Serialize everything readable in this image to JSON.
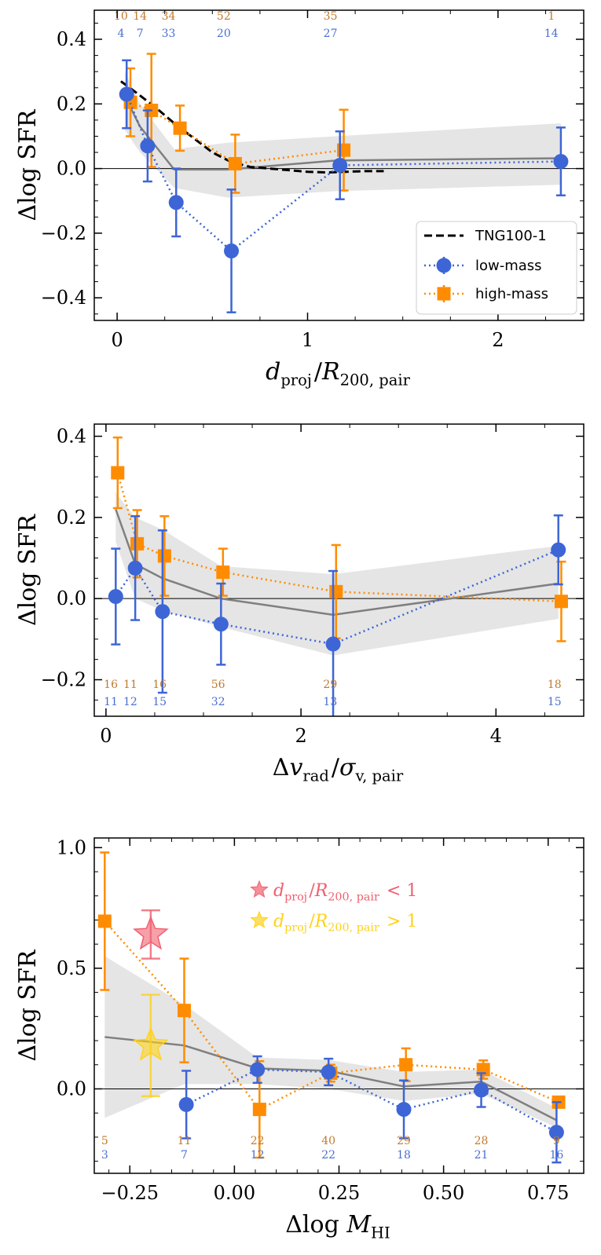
{
  "colors": {
    "low": "#3d65d6",
    "high": "#ff8c00",
    "count_low": "#4a6fd0",
    "count_high": "#c07a30",
    "total": "#7f7f7f",
    "band": "#e5e5e5",
    "tng": "#000000",
    "star_in": "#f06070",
    "star_out": "#ffd21a"
  },
  "chart_data": [
    {
      "type": "line",
      "panel": "top",
      "ylabel": "Δlog SFR",
      "xlabel": "dproj/R200,pair",
      "xlim": [
        -0.12,
        2.45
      ],
      "ylim": [
        -0.47,
        0.49
      ],
      "xticks": [
        0,
        1,
        2
      ],
      "yticks": [
        -0.4,
        -0.2,
        0.0,
        0.2,
        0.4
      ],
      "xtick_labels": [
        "0",
        "1",
        "2"
      ],
      "ytick_labels": [
        "−0.4",
        "−0.2",
        "0.0",
        "0.2",
        "0.4"
      ],
      "legend": {
        "position": "lower-right",
        "entries": [
          "TNG100-1",
          "low-mass",
          "high-mass"
        ]
      },
      "series": [
        {
          "name": "low-mass",
          "x": [
            0.05,
            0.16,
            0.31,
            0.6,
            1.17,
            2.33
          ],
          "y": [
            0.23,
            0.07,
            -0.105,
            -0.255,
            0.01,
            0.022
          ],
          "err": [
            0.105,
            0.11,
            0.105,
            0.19,
            0.105,
            0.105
          ]
        },
        {
          "name": "high-mass",
          "x": [
            0.07,
            0.18,
            0.33,
            0.62,
            1.19
          ],
          "y": [
            0.205,
            0.18,
            0.125,
            0.015,
            0.057
          ],
          "err": [
            0.105,
            0.175,
            0.07,
            0.09,
            0.125
          ]
        },
        {
          "name": "total",
          "x": [
            0.04,
            0.12,
            0.3,
            0.58,
            1.15,
            2.33
          ],
          "y": [
            0.225,
            0.13,
            -0.003,
            -0.003,
            0.025,
            0.032
          ]
        },
        {
          "name": "TNG100-1",
          "x": [
            0.02,
            0.1,
            0.2,
            0.3,
            0.4,
            0.5,
            0.6,
            0.7,
            0.8,
            0.9,
            1.0,
            1.1,
            1.2,
            1.3,
            1.4
          ],
          "y": [
            0.27,
            0.235,
            0.19,
            0.14,
            0.095,
            0.05,
            0.02,
            0.005,
            0.0,
            -0.005,
            -0.01,
            -0.012,
            -0.01,
            -0.008,
            -0.008
          ]
        }
      ],
      "band": {
        "x": [
          0.04,
          0.12,
          0.3,
          0.58,
          1.15,
          2.33
        ],
        "y_low": [
          0.12,
          0.05,
          -0.06,
          -0.09,
          -0.07,
          -0.05
        ],
        "y_high": [
          0.3,
          0.2,
          0.06,
          0.08,
          0.1,
          0.14
        ]
      },
      "counts_high": {
        "x": [
          0.02,
          0.12,
          0.27,
          0.56,
          1.12,
          2.28
        ],
        "labels": [
          "10",
          "14",
          "34",
          "52",
          "35",
          "1"
        ]
      },
      "counts_low": {
        "x": [
          0.02,
          0.12,
          0.27,
          0.56,
          1.12,
          2.28
        ],
        "labels": [
          "4",
          "7",
          "33",
          "20",
          "27",
          "14"
        ]
      }
    },
    {
      "type": "line",
      "panel": "middle",
      "ylabel": "Δlog SFR",
      "xlabel": "Δvrad/σv,pair",
      "xlim": [
        -0.12,
        4.9
      ],
      "ylim": [
        -0.29,
        0.43
      ],
      "xticks": [
        0,
        2,
        4
      ],
      "yticks": [
        -0.2,
        0.0,
        0.2,
        0.4
      ],
      "xtick_labels": [
        "0",
        "2",
        "4"
      ],
      "ytick_labels": [
        "−0.2",
        "0.0",
        "0.2",
        "0.4"
      ],
      "series": [
        {
          "name": "low-mass",
          "x": [
            0.1,
            0.3,
            0.58,
            1.18,
            2.33,
            4.64
          ],
          "y": [
            0.005,
            0.075,
            -0.032,
            -0.063,
            -0.112,
            0.12
          ],
          "err": [
            0.118,
            0.128,
            0.2,
            0.1,
            0.18,
            0.085
          ]
        },
        {
          "name": "high-mass",
          "x": [
            0.12,
            0.32,
            0.6,
            1.2,
            2.36,
            4.67
          ],
          "y": [
            0.31,
            0.135,
            0.105,
            0.065,
            0.017,
            -0.007
          ],
          "err": [
            0.087,
            0.083,
            0.098,
            0.058,
            0.115,
            0.098
          ]
        },
        {
          "name": "total",
          "x": [
            0.1,
            0.3,
            0.58,
            1.18,
            2.33,
            4.64
          ],
          "y": [
            0.22,
            0.085,
            0.05,
            0.0,
            -0.04,
            0.037
          ]
        }
      ],
      "band": {
        "x": [
          0.1,
          0.3,
          0.58,
          1.18,
          2.33,
          4.64
        ],
        "y_low": [
          0.14,
          0.0,
          -0.03,
          -0.07,
          -0.14,
          -0.05
        ],
        "y_high": [
          0.26,
          0.2,
          0.17,
          0.08,
          0.06,
          0.13
        ]
      },
      "counts_high": {
        "x": [
          0.05,
          0.25,
          0.55,
          1.15,
          2.3,
          4.6
        ],
        "labels": [
          "16",
          "11",
          "16",
          "56",
          "29",
          "18"
        ]
      },
      "counts_low": {
        "x": [
          0.05,
          0.25,
          0.55,
          1.15,
          2.3,
          4.6
        ],
        "labels": [
          "11",
          "12",
          "15",
          "32",
          "13",
          "15"
        ]
      }
    },
    {
      "type": "line",
      "panel": "bottom",
      "ylabel": "Δlog SFR",
      "xlabel": "Δlog MHI",
      "xlim": [
        -0.335,
        0.835
      ],
      "ylim": [
        -0.35,
        1.04
      ],
      "xticks": [
        -0.25,
        0.0,
        0.25,
        0.5,
        0.75
      ],
      "yticks": [
        0.0,
        0.5,
        1.0
      ],
      "xtick_labels": [
        "−0.25",
        "0.00",
        "0.25",
        "0.50",
        "0.75"
      ],
      "ytick_labels": [
        "0.0",
        "0.5",
        "1.0"
      ],
      "legend": {
        "position": "top-right",
        "entries": [
          "dproj/R200,pair < 1",
          "dproj/R200,pair > 1"
        ]
      },
      "series": [
        {
          "name": "low-mass",
          "x": [
            -0.115,
            0.055,
            0.225,
            0.405,
            0.59,
            0.77
          ],
          "y": [
            -0.065,
            0.08,
            0.07,
            -0.085,
            -0.005,
            -0.18
          ],
          "err": [
            0.14,
            0.055,
            0.055,
            0.12,
            0.07,
            0.125
          ]
        },
        {
          "name": "high-mass",
          "x": [
            -0.31,
            -0.12,
            0.06,
            0.23,
            0.41,
            0.595,
            0.775
          ],
          "y": [
            0.695,
            0.325,
            -0.085,
            0.065,
            0.1,
            0.08,
            -0.055
          ],
          "err": [
            0.285,
            0.215,
            0.2,
            0.035,
            0.068,
            0.038,
            0.02
          ]
        },
        {
          "name": "total",
          "x": [
            -0.31,
            -0.12,
            0.055,
            0.225,
            0.405,
            0.59,
            0.77
          ],
          "y": [
            0.215,
            0.18,
            0.085,
            0.075,
            0.01,
            0.03,
            -0.13
          ]
        }
      ],
      "band": {
        "x": [
          -0.31,
          -0.12,
          0.055,
          0.225,
          0.405,
          0.59,
          0.77
        ],
        "y_low": [
          -0.12,
          0.02,
          0.02,
          0.0,
          -0.05,
          -0.02,
          -0.16
        ],
        "y_high": [
          0.55,
          0.35,
          0.13,
          0.12,
          0.07,
          0.08,
          -0.08
        ]
      },
      "stars": [
        {
          "name": "dproj/R200,pair < 1",
          "x": -0.2,
          "y": 0.64,
          "err": 0.1
        },
        {
          "name": "dproj/R200,pair > 1",
          "x": -0.2,
          "y": 0.18,
          "err": 0.21
        }
      ],
      "counts_high": {
        "x": [
          -0.31,
          -0.12,
          0.055,
          0.225,
          0.405,
          0.59,
          0.77
        ],
        "labels": [
          "5",
          "11",
          "22",
          "40",
          "29",
          "28",
          "9"
        ]
      },
      "counts_low": {
        "x": [
          -0.31,
          -0.12,
          0.055,
          0.225,
          0.405,
          0.59,
          0.77
        ],
        "labels": [
          "3",
          "7",
          "12",
          "22",
          "18",
          "21",
          "16"
        ]
      }
    }
  ]
}
